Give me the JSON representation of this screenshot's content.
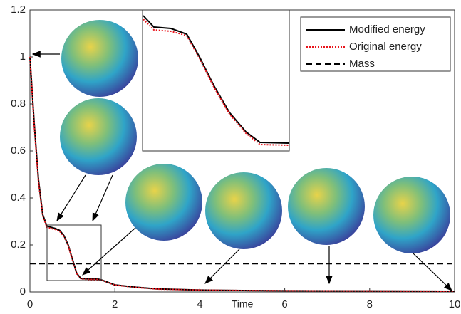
{
  "chart_data": {
    "type": "line",
    "x_label": "Time",
    "x": [
      0,
      0.1,
      0.2,
      0.3,
      0.4,
      0.5,
      0.6,
      0.7,
      0.8,
      0.9,
      1.0,
      1.1,
      1.2,
      1.4,
      1.6,
      1.7,
      2.0,
      2.5,
      3,
      4,
      5,
      6,
      8,
      10
    ],
    "series": [
      {
        "name": "Modified energy",
        "color": "#000000",
        "dash": "solid",
        "values": [
          1,
          0.72,
          0.48,
          0.33,
          0.28,
          0.275,
          0.27,
          0.262,
          0.24,
          0.2,
          0.14,
          0.08,
          0.057,
          0.055,
          0.055,
          0.05,
          0.03,
          0.02,
          0.013,
          0.008,
          0.006,
          0.005,
          0.004,
          0.003
        ]
      },
      {
        "name": "Original energy",
        "color": "#e8141b",
        "dash": "dotted",
        "values": [
          1,
          0.71,
          0.47,
          0.325,
          0.275,
          0.27,
          0.266,
          0.258,
          0.236,
          0.197,
          0.137,
          0.078,
          0.055,
          0.053,
          0.053,
          0.049,
          0.029,
          0.019,
          0.012,
          0.008,
          0.006,
          0.005,
          0.004,
          0.003
        ]
      },
      {
        "name": "Mass",
        "color": "#000000",
        "dash": "dashed",
        "values": [
          0.12,
          0.12,
          0.12,
          0.12,
          0.12,
          0.12,
          0.12,
          0.12,
          0.12,
          0.12,
          0.12,
          0.12,
          0.12,
          0.12,
          0.12,
          0.12,
          0.12,
          0.12,
          0.12,
          0.12,
          0.12,
          0.12,
          0.12,
          0.12
        ]
      }
    ],
    "xlim": [
      0,
      10
    ],
    "xticks": [
      0,
      2,
      4,
      6,
      8,
      10
    ],
    "ylim": [
      0,
      1.2
    ],
    "yticks": [
      0,
      0.2,
      0.4,
      0.6,
      0.8,
      1,
      1.2
    ],
    "legend": "upper-right"
  }
}
